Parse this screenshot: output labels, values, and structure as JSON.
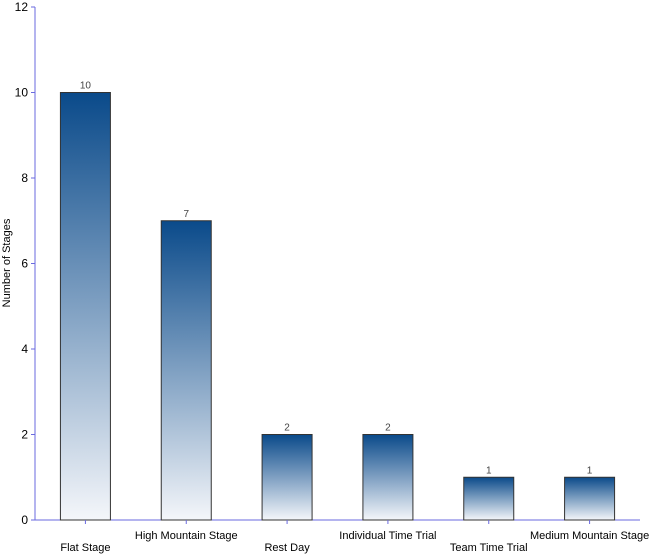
{
  "chart_data": {
    "type": "bar",
    "categories": [
      "Flat Stage",
      "High Mountain Stage",
      "Rest Day",
      "Individual Time Trial",
      "Team Time Trial",
      "Medium Mountain Stage"
    ],
    "values": [
      10,
      7,
      2,
      2,
      1,
      1
    ],
    "data_labels": [
      "10",
      "7",
      "2",
      "2",
      "1",
      "1"
    ],
    "xlabel": "",
    "ylabel": "Number of Stages",
    "ylim": [
      0,
      12
    ],
    "yticks": [
      "0",
      "2",
      "4",
      "6",
      "8",
      "10",
      "12"
    ],
    "grid": false,
    "legend": "none",
    "colors": {
      "bar_top": "#0a4a8a",
      "bar_bottom": "#f4f6fa",
      "bar_outline": "#333333",
      "axis": "#6a6adf"
    }
  }
}
